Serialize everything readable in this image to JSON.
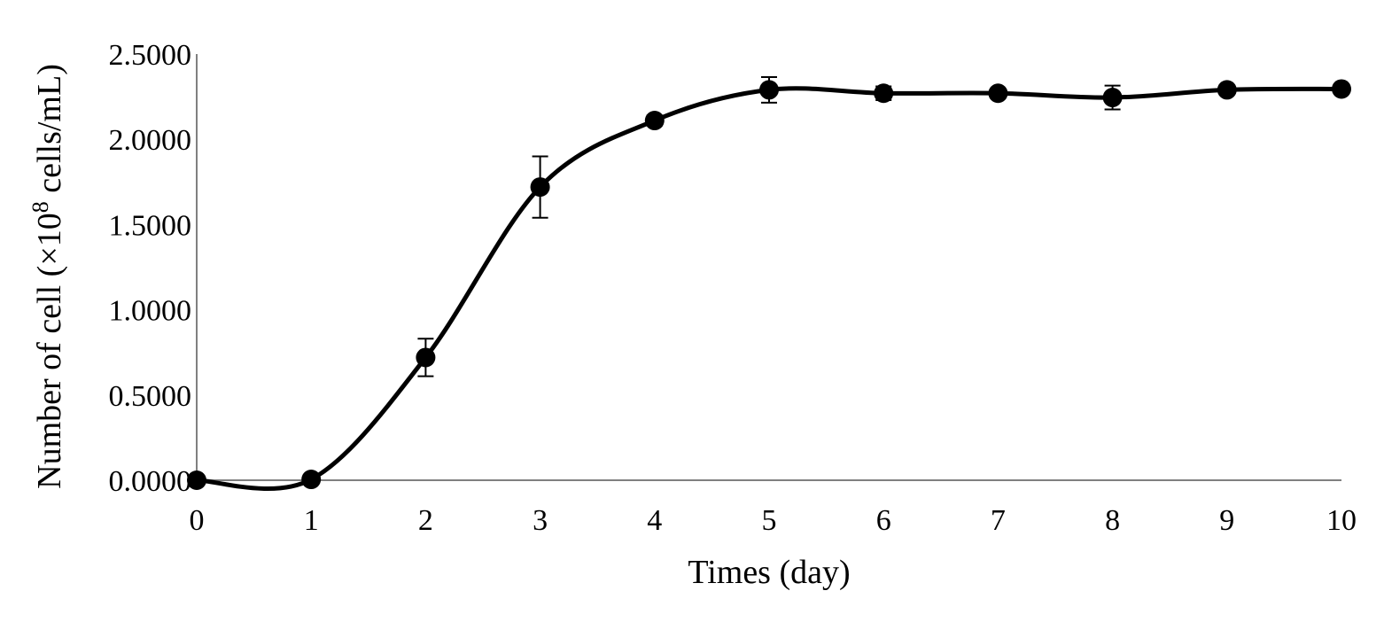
{
  "chart_data": {
    "type": "line",
    "title": "",
    "xlabel": "Times (day)",
    "ylabel": {
      "prefix": "Number of cell (×10",
      "superscript": "8",
      "suffix": " cells/mL)"
    },
    "x": [
      0,
      1,
      2,
      3,
      4,
      5,
      6,
      7,
      8,
      9,
      10
    ],
    "x_tick_labels": [
      "0",
      "1",
      "2",
      "3",
      "4",
      "5",
      "6",
      "7",
      "8",
      "9",
      "10"
    ],
    "y_tick_labels": [
      "0.0000",
      "0.5000",
      "1.0000",
      "1.5000",
      "2.0000",
      "2.5000"
    ],
    "y_ticks": [
      0,
      0.5,
      1.0,
      1.5,
      2.0,
      2.5
    ],
    "xlim": [
      0,
      10
    ],
    "ylim": [
      0,
      2.5
    ],
    "grid": false,
    "smooth": true,
    "series": [
      {
        "values": [
          0.0,
          0.005,
          0.72,
          1.72,
          2.11,
          2.29,
          2.27,
          2.27,
          2.245,
          2.29,
          2.295
        ],
        "error": [
          0.0,
          0.0,
          0.11,
          0.18,
          0.03,
          0.075,
          0.04,
          0.0,
          0.07,
          0.0,
          0.0
        ],
        "color": "#000000",
        "marker": "circle"
      }
    ]
  }
}
